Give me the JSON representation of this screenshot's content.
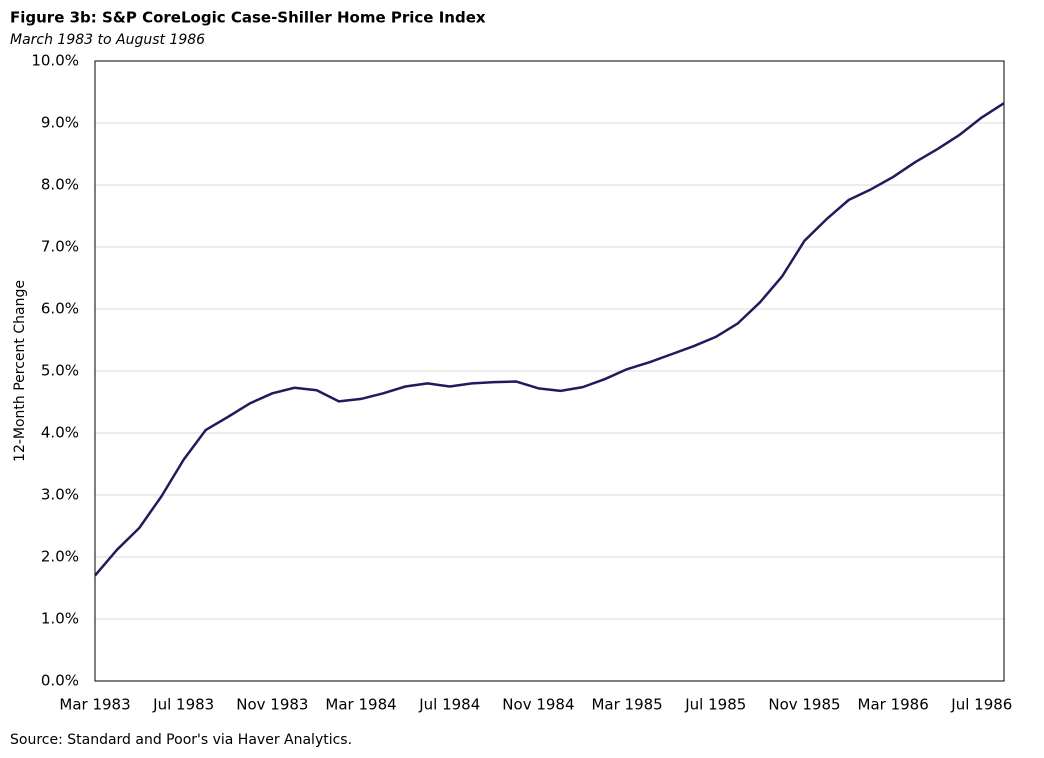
{
  "chart_data": {
    "type": "line",
    "title": "Figure 3b: S&P CoreLogic Case-Shiller Home Price Index",
    "subtitle": "March 1983  to August 1986",
    "y_label": "12-Month Percent Change",
    "source": "Source: Standard and Poor's via Haver Analytics.",
    "categories": [
      "Mar 1983",
      null,
      null,
      null,
      "Jul 1983",
      null,
      null,
      null,
      "Nov 1983",
      null,
      null,
      null,
      "Mar 1984",
      null,
      null,
      null,
      "Jul 1984",
      null,
      null,
      null,
      "Nov 1984",
      null,
      null,
      null,
      "Mar 1985",
      null,
      null,
      null,
      "Jul 1985",
      null,
      null,
      null,
      "Nov 1985",
      null,
      null,
      null,
      "Mar 1986",
      null,
      null,
      null,
      "Jul 1986",
      null
    ],
    "series": [
      {
        "color": "#221a5c",
        "values": [
          1.7,
          2.12,
          2.47,
          2.98,
          3.57,
          4.05,
          4.26,
          4.48,
          4.64,
          4.73,
          4.69,
          4.51,
          4.55,
          4.64,
          4.75,
          4.8,
          4.75,
          4.8,
          4.82,
          4.83,
          4.72,
          4.68,
          4.74,
          4.87,
          5.03,
          5.14,
          5.27,
          5.4,
          5.55,
          5.77,
          6.11,
          6.53,
          7.1,
          7.45,
          7.76,
          7.93,
          8.13,
          8.37,
          8.58,
          8.81,
          9.09,
          9.32
        ]
      }
    ],
    "ylim": [
      0,
      10
    ],
    "yticks": [
      {
        "value": 0,
        "label": "0.0%"
      },
      {
        "value": 1,
        "label": "1.0%"
      },
      {
        "value": 2,
        "label": "2.0%"
      },
      {
        "value": 3,
        "label": "3.0%"
      },
      {
        "value": 4,
        "label": "4.0%"
      },
      {
        "value": 5,
        "label": "5.0%"
      },
      {
        "value": 6,
        "label": "6.0%"
      },
      {
        "value": 7,
        "label": "7.0%"
      },
      {
        "value": 8,
        "label": "8.0%"
      },
      {
        "value": 9,
        "label": "9.0%"
      },
      {
        "value": 10,
        "label": "10.0%"
      }
    ],
    "grid": true
  }
}
